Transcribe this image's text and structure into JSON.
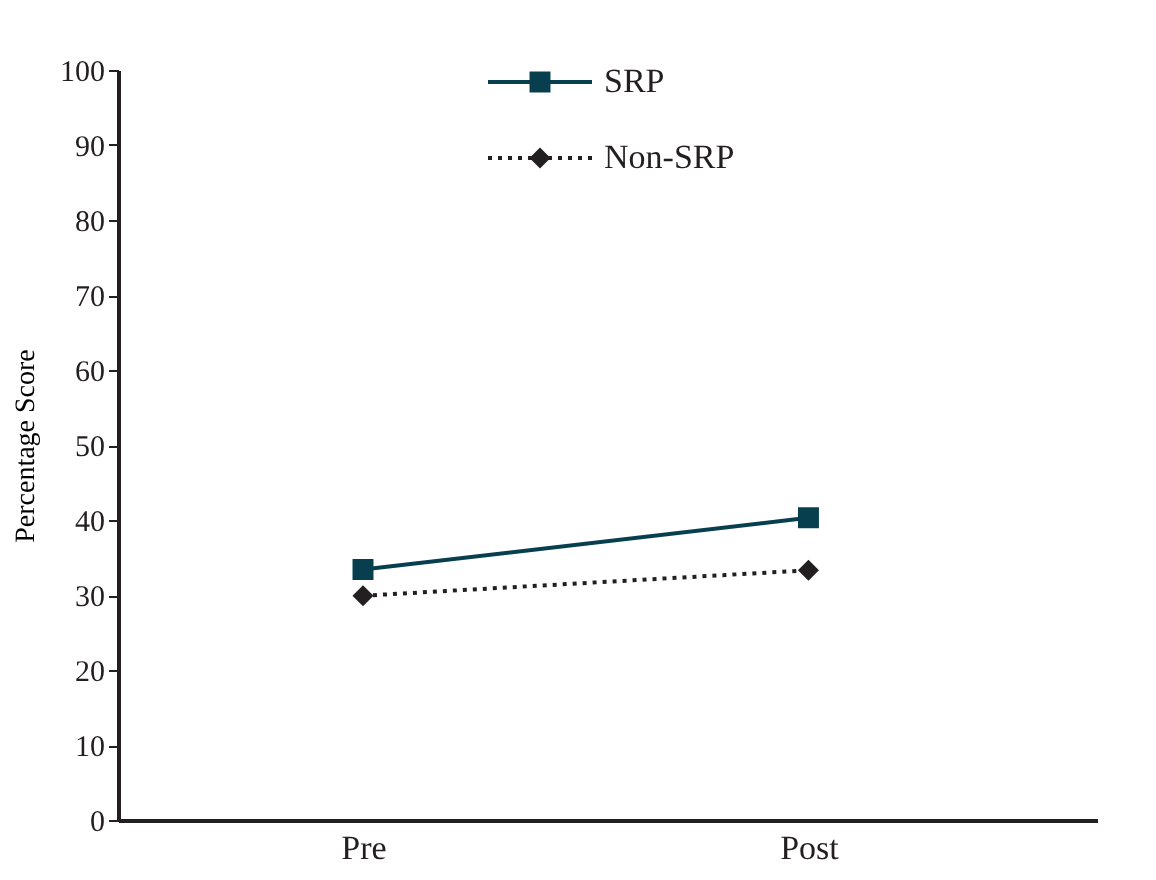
{
  "chart_data": {
    "type": "line",
    "ylabel": "Percentage Score",
    "categories": [
      "Pre",
      "Post"
    ],
    "series": [
      {
        "name": "SRP",
        "color": "#073f4f",
        "values": [
          33.4,
          40.3
        ],
        "marker": "square",
        "line_style": "solid"
      },
      {
        "name": "Non-SRP",
        "color": "#231f20",
        "values": [
          29.9,
          33.3
        ],
        "marker": "diamond",
        "line_style": "dotted"
      }
    ],
    "ylim": [
      0,
      100
    ],
    "yticks": [
      0,
      10,
      20,
      30,
      40,
      50,
      60,
      70,
      80,
      90,
      100
    ],
    "grid": false,
    "legend": "top"
  }
}
